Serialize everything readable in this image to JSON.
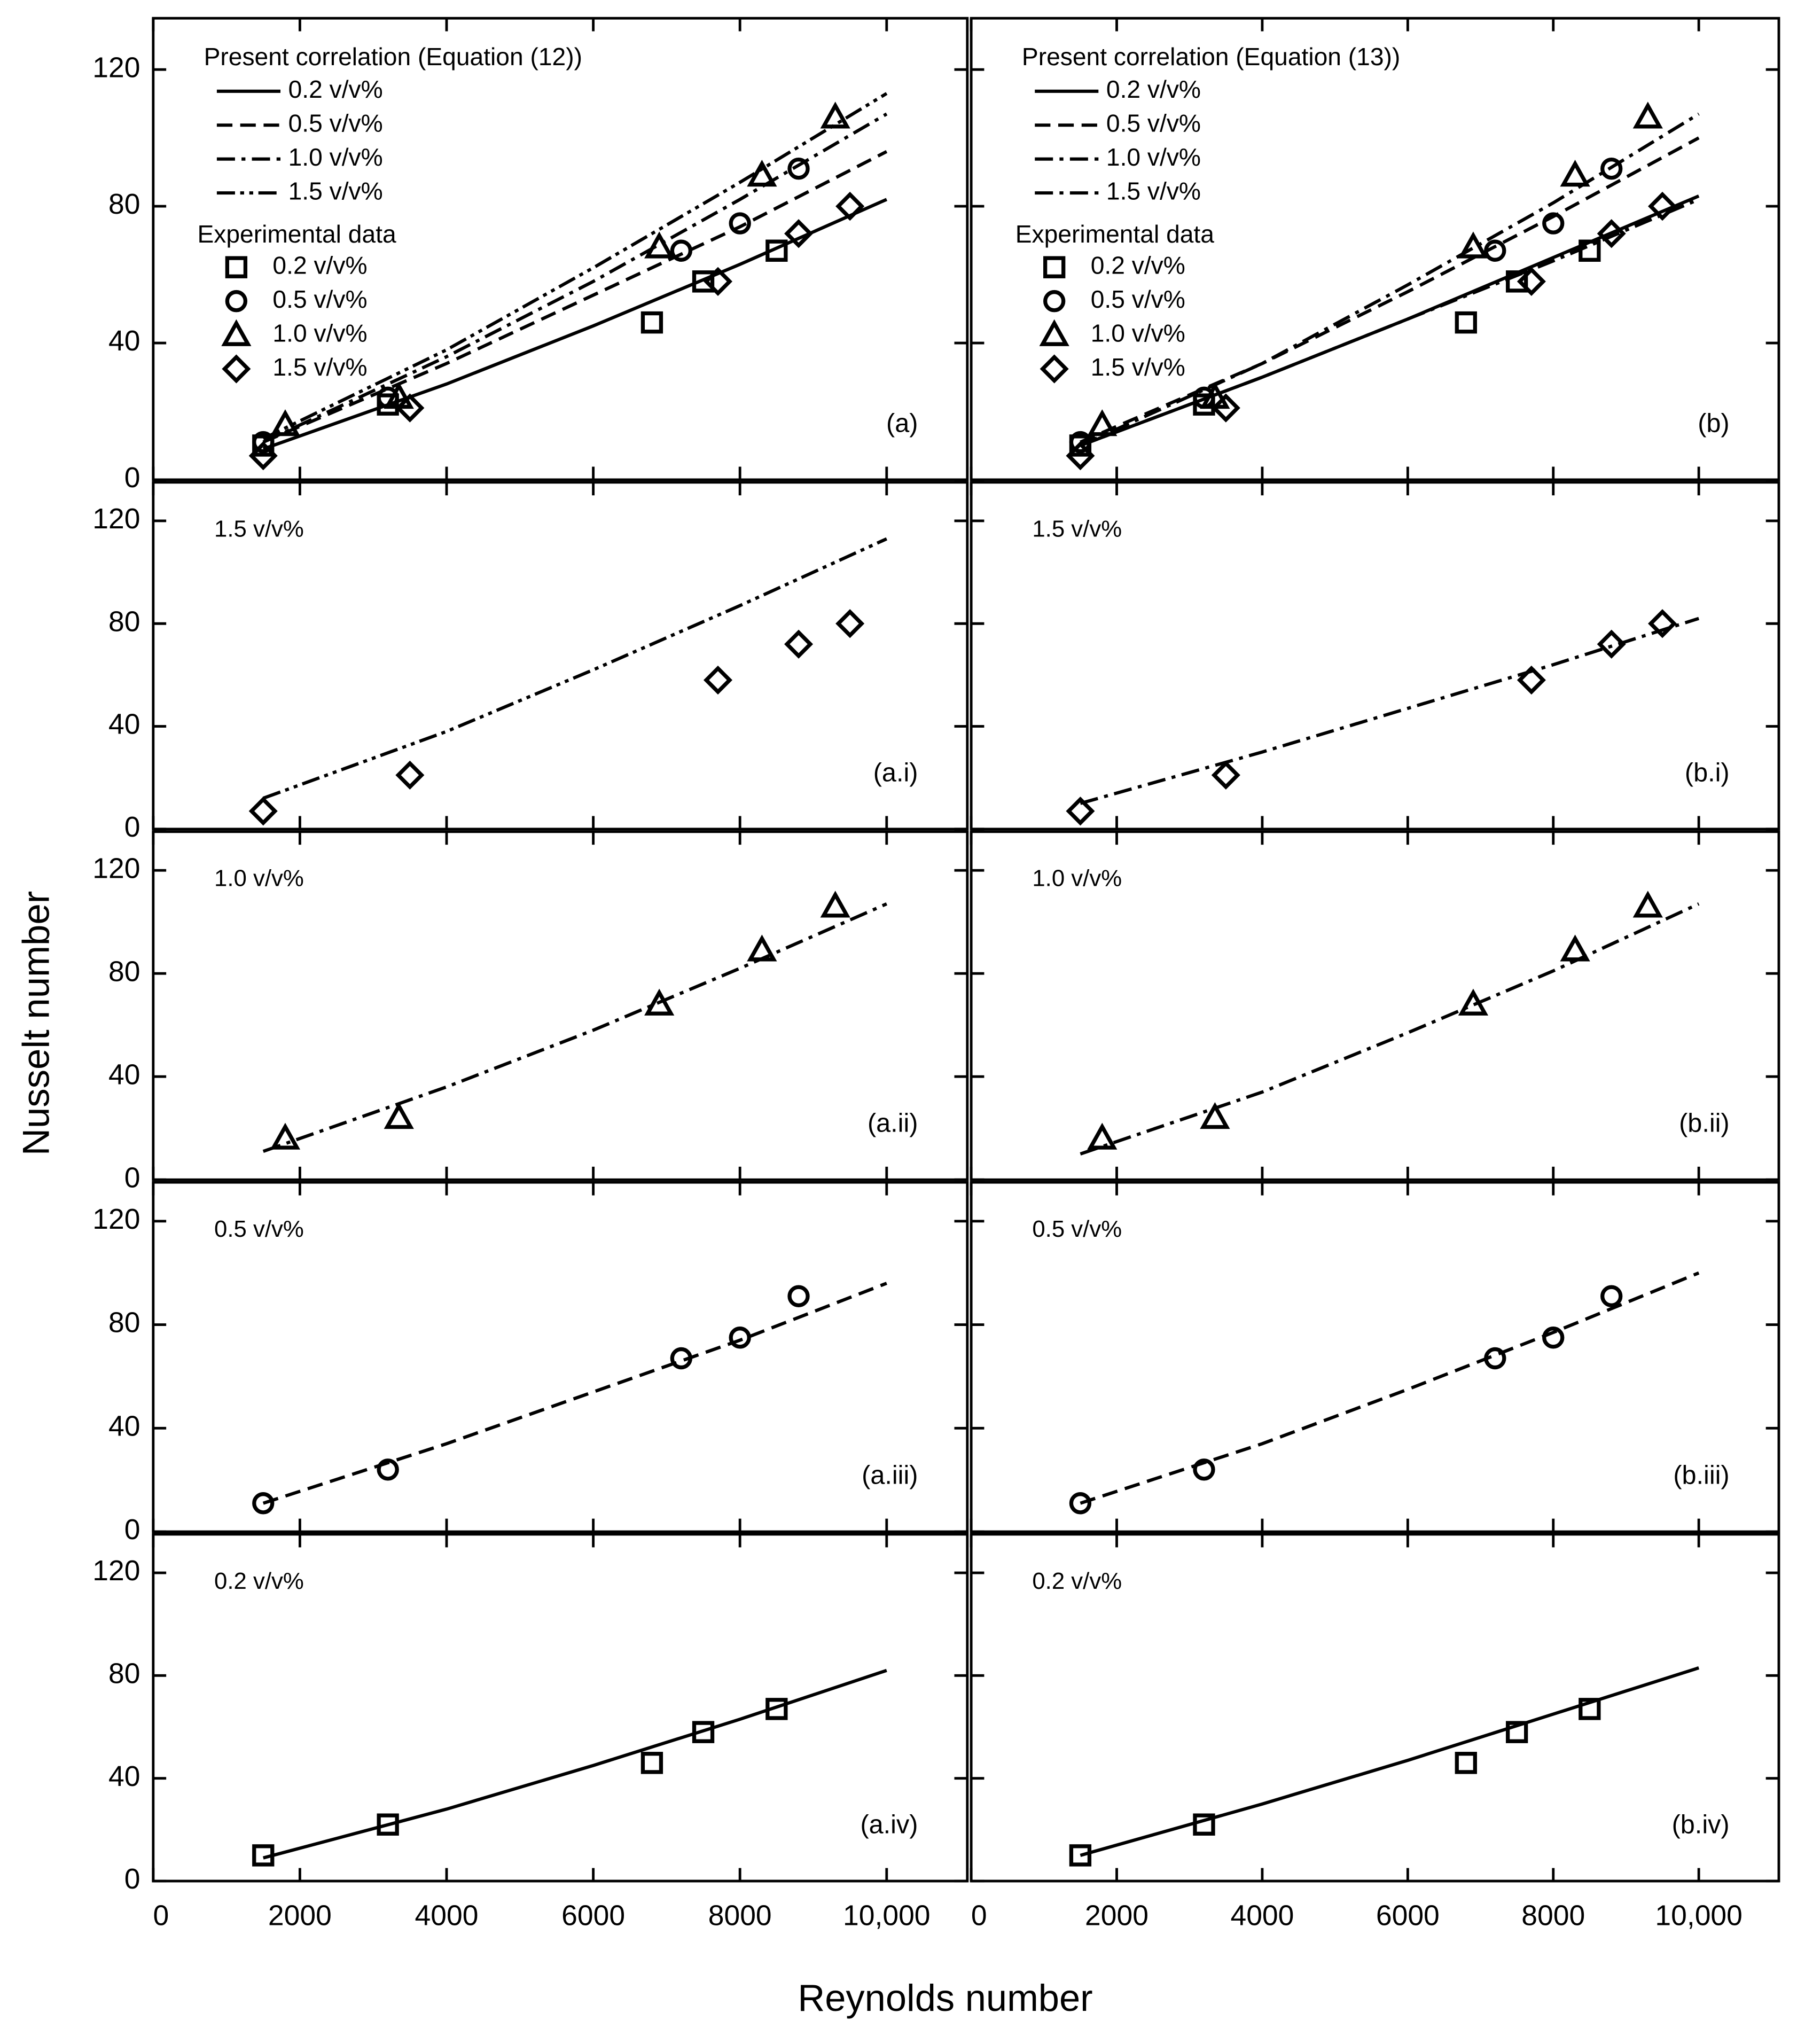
{
  "axis_titles": {
    "x": "Reynolds number",
    "y": "Nusselt number"
  },
  "chart_data": [
    {
      "type": "scatter",
      "panel_label": "(a)",
      "legend_title": "Present correlation (Equation (12))",
      "data_title": "Experimental data",
      "color": "#000000",
      "xlim": [
        0,
        11100
      ],
      "ylim": [
        0,
        135
      ],
      "xticks": [
        0,
        2000,
        4000,
        6000,
        8000,
        10000
      ],
      "yticks": [
        0,
        40,
        80,
        120
      ],
      "lines": [
        {
          "name": "0.2 v/v%",
          "dash": "solid",
          "x": [
            1500,
            4000,
            6000,
            8000,
            10000
          ],
          "values": [
            9,
            28,
            45,
            63,
            82
          ]
        },
        {
          "name": "0.5 v/v%",
          "dash": "dashed",
          "x": [
            1500,
            4000,
            6000,
            8000,
            10000
          ],
          "values": [
            11,
            34,
            54,
            74,
            96
          ]
        },
        {
          "name": "1.0 v/v%",
          "dash": "dashdot",
          "x": [
            1500,
            4000,
            6000,
            8000,
            10000
          ],
          "values": [
            11,
            36,
            58,
            82,
            107
          ]
        },
        {
          "name": "1.5 v/v%",
          "dash": "dashdotdot",
          "x": [
            1500,
            4000,
            6000,
            8000,
            10000
          ],
          "values": [
            12,
            38,
            62,
            87,
            113
          ]
        }
      ],
      "series": [
        {
          "name": "0.2 v/v%",
          "marker": "square",
          "x": [
            1500,
            3200,
            6800,
            7500,
            8500
          ],
          "values": [
            10,
            22,
            46,
            58,
            67
          ]
        },
        {
          "name": "0.5 v/v%",
          "marker": "circle",
          "x": [
            1500,
            3200,
            7200,
            8000,
            8800
          ],
          "values": [
            11,
            24,
            67,
            75,
            91
          ]
        },
        {
          "name": "1.0 v/v%",
          "marker": "triangle",
          "x": [
            1800,
            3350,
            6900,
            8300,
            9300
          ],
          "values": [
            16,
            24,
            68,
            89,
            106
          ]
        },
        {
          "name": "1.5 v/v%",
          "marker": "diamond",
          "x": [
            1500,
            3500,
            7700,
            8800,
            9500
          ],
          "values": [
            7,
            21,
            58,
            72,
            80
          ]
        }
      ]
    },
    {
      "type": "scatter",
      "panel_label": "(b)",
      "legend_title": "Present correlation (Equation (13))",
      "data_title": "Experimental data",
      "color": "#000000",
      "xlim": [
        0,
        11100
      ],
      "ylim": [
        0,
        135
      ],
      "xticks": [
        0,
        2000,
        4000,
        6000,
        8000,
        10000
      ],
      "yticks": [
        0,
        40,
        80,
        120
      ],
      "lines": [
        {
          "name": "0.2 v/v%",
          "dash": "solid",
          "x": [
            1500,
            4000,
            6000,
            8000,
            10000
          ],
          "values": [
            10,
            30,
            47,
            65,
            83
          ]
        },
        {
          "name": "0.5 v/v%",
          "dash": "dashed",
          "x": [
            1500,
            4000,
            6000,
            8000,
            10000
          ],
          "values": [
            11,
            34,
            55,
            77,
            100
          ]
        },
        {
          "name": "1.0 v/v%",
          "dash": "dashdot",
          "x": [
            1500,
            4000,
            6000,
            8000,
            10000
          ],
          "values": [
            10,
            34,
            57,
            81,
            107
          ]
        },
        {
          "name": "1.5 v/v%",
          "dash": "dashdot",
          "x": [
            1500,
            4000,
            6000,
            8000,
            10000
          ],
          "values": [
            10,
            30,
            47,
            64,
            82
          ]
        }
      ],
      "series": [
        {
          "name": "0.2 v/v%",
          "marker": "square",
          "x": [
            1500,
            3200,
            6800,
            7500,
            8500
          ],
          "values": [
            10,
            22,
            46,
            58,
            67
          ]
        },
        {
          "name": "0.5 v/v%",
          "marker": "circle",
          "x": [
            1500,
            3200,
            7200,
            8000,
            8800
          ],
          "values": [
            11,
            24,
            67,
            75,
            91
          ]
        },
        {
          "name": "1.0 v/v%",
          "marker": "triangle",
          "x": [
            1800,
            3350,
            6900,
            8300,
            9300
          ],
          "values": [
            16,
            24,
            68,
            89,
            106
          ]
        },
        {
          "name": "1.5 v/v%",
          "marker": "diamond",
          "x": [
            1500,
            3500,
            7700,
            8800,
            9500
          ],
          "values": [
            7,
            21,
            58,
            72,
            80
          ]
        }
      ]
    },
    {
      "type": "scatter",
      "panel_label": "(a.i)",
      "subtitle": "1.5 v/v%",
      "color": "#000000",
      "xlim": [
        0,
        11100
      ],
      "ylim": [
        0,
        135
      ],
      "xticks": [
        0,
        2000,
        4000,
        6000,
        8000,
        10000
      ],
      "yticks": [
        0,
        40,
        80,
        120
      ],
      "lines": [
        {
          "dash": "dashdotdot",
          "x": [
            1500,
            4000,
            6000,
            8000,
            10000
          ],
          "values": [
            12,
            38,
            62,
            87,
            113
          ]
        }
      ],
      "series": [
        {
          "marker": "diamond",
          "x": [
            1500,
            3500,
            7700,
            8800,
            9500
          ],
          "values": [
            7,
            21,
            58,
            72,
            80
          ]
        }
      ]
    },
    {
      "type": "scatter",
      "panel_label": "(b.i)",
      "subtitle": "1.5 v/v%",
      "color": "#000000",
      "xlim": [
        0,
        11100
      ],
      "ylim": [
        0,
        135
      ],
      "xticks": [
        0,
        2000,
        4000,
        6000,
        8000,
        10000
      ],
      "yticks": [
        0,
        40,
        80,
        120
      ],
      "lines": [
        {
          "dash": "dashdot",
          "x": [
            1500,
            4000,
            6000,
            8000,
            10000
          ],
          "values": [
            10,
            30,
            47,
            64,
            82
          ]
        }
      ],
      "series": [
        {
          "marker": "diamond",
          "x": [
            1500,
            3500,
            7700,
            8800,
            9500
          ],
          "values": [
            7,
            21,
            58,
            72,
            80
          ]
        }
      ]
    },
    {
      "type": "scatter",
      "panel_label": "(a.ii)",
      "subtitle": "1.0 v/v%",
      "color": "#000000",
      "xlim": [
        0,
        11100
      ],
      "ylim": [
        0,
        135
      ],
      "xticks": [
        0,
        2000,
        4000,
        6000,
        8000,
        10000
      ],
      "yticks": [
        0,
        40,
        80,
        120
      ],
      "lines": [
        {
          "dash": "dashdot",
          "x": [
            1500,
            4000,
            6000,
            8000,
            10000
          ],
          "values": [
            11,
            36,
            58,
            82,
            107
          ]
        }
      ],
      "series": [
        {
          "marker": "triangle",
          "x": [
            1800,
            3350,
            6900,
            8300,
            9300
          ],
          "values": [
            16,
            24,
            68,
            89,
            106
          ]
        }
      ]
    },
    {
      "type": "scatter",
      "panel_label": "(b.ii)",
      "subtitle": "1.0 v/v%",
      "color": "#000000",
      "xlim": [
        0,
        11100
      ],
      "ylim": [
        0,
        135
      ],
      "xticks": [
        0,
        2000,
        4000,
        6000,
        8000,
        10000
      ],
      "yticks": [
        0,
        40,
        80,
        120
      ],
      "lines": [
        {
          "dash": "dashdot",
          "x": [
            1500,
            4000,
            6000,
            8000,
            10000
          ],
          "values": [
            10,
            34,
            57,
            81,
            107
          ]
        }
      ],
      "series": [
        {
          "marker": "triangle",
          "x": [
            1800,
            3350,
            6900,
            8300,
            9300
          ],
          "values": [
            16,
            24,
            68,
            89,
            106
          ]
        }
      ]
    },
    {
      "type": "scatter",
      "panel_label": "(a.iii)",
      "subtitle": "0.5 v/v%",
      "color": "#000000",
      "xlim": [
        0,
        11100
      ],
      "ylim": [
        0,
        135
      ],
      "xticks": [
        0,
        2000,
        4000,
        6000,
        8000,
        10000
      ],
      "yticks": [
        0,
        40,
        80,
        120
      ],
      "lines": [
        {
          "dash": "dashed",
          "x": [
            1500,
            4000,
            6000,
            8000,
            10000
          ],
          "values": [
            11,
            34,
            54,
            74,
            96
          ]
        }
      ],
      "series": [
        {
          "marker": "circle",
          "x": [
            1500,
            3200,
            7200,
            8000,
            8800
          ],
          "values": [
            11,
            24,
            67,
            75,
            91
          ]
        }
      ]
    },
    {
      "type": "scatter",
      "panel_label": "(b.iii)",
      "subtitle": "0.5 v/v%",
      "color": "#000000",
      "xlim": [
        0,
        11100
      ],
      "ylim": [
        0,
        135
      ],
      "xticks": [
        0,
        2000,
        4000,
        6000,
        8000,
        10000
      ],
      "yticks": [
        0,
        40,
        80,
        120
      ],
      "lines": [
        {
          "dash": "dashed",
          "x": [
            1500,
            4000,
            6000,
            8000,
            10000
          ],
          "values": [
            11,
            34,
            55,
            77,
            100
          ]
        }
      ],
      "series": [
        {
          "marker": "circle",
          "x": [
            1500,
            3200,
            7200,
            8000,
            8800
          ],
          "values": [
            11,
            24,
            67,
            75,
            91
          ]
        }
      ]
    },
    {
      "type": "scatter",
      "panel_label": "(a.iv)",
      "subtitle": "0.2 v/v%",
      "color": "#000000",
      "xlim": [
        0,
        11100
      ],
      "ylim": [
        0,
        135
      ],
      "xticks": [
        0,
        2000,
        4000,
        6000,
        8000,
        {
          "value": 10000,
          "label": "10,000"
        }
      ],
      "yticks": [
        0,
        40,
        80,
        120
      ],
      "lines": [
        {
          "dash": "solid",
          "x": [
            1500,
            4000,
            6000,
            8000,
            10000
          ],
          "values": [
            9,
            28,
            45,
            63,
            82
          ]
        }
      ],
      "series": [
        {
          "marker": "square",
          "x": [
            1500,
            3200,
            6800,
            7500,
            8500
          ],
          "values": [
            10,
            22,
            46,
            58,
            67
          ]
        }
      ]
    },
    {
      "type": "scatter",
      "panel_label": "(b.iv)",
      "subtitle": "0.2 v/v%",
      "color": "#000000",
      "xlim": [
        0,
        11100
      ],
      "ylim": [
        0,
        135
      ],
      "xticks": [
        0,
        2000,
        4000,
        6000,
        8000,
        {
          "value": 10000,
          "label": "10,000"
        }
      ],
      "yticks": [
        0,
        40,
        80,
        120
      ],
      "lines": [
        {
          "dash": "solid",
          "x": [
            1500,
            4000,
            6000,
            8000,
            10000
          ],
          "values": [
            10,
            30,
            47,
            65,
            83
          ]
        }
      ],
      "series": [
        {
          "marker": "square",
          "x": [
            1500,
            3200,
            6800,
            7500,
            8500
          ],
          "values": [
            10,
            22,
            46,
            58,
            67
          ]
        }
      ]
    }
  ]
}
